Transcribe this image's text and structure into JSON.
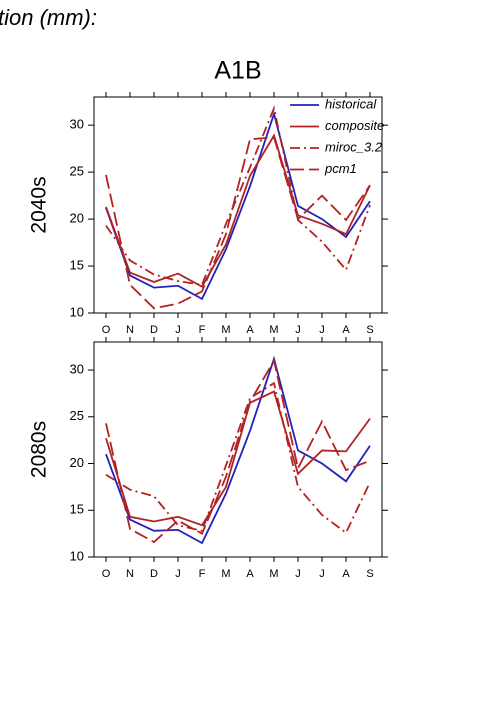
{
  "heading": "tion (mm):",
  "title": "A1B",
  "chart_data": [
    {
      "type": "line",
      "ylabel": "2040s",
      "legend": "upper right",
      "categories": [
        "O",
        "N",
        "D",
        "J",
        "F",
        "M",
        "A",
        "M",
        "J",
        "J",
        "A",
        "S"
      ],
      "ylim": [
        10,
        33
      ],
      "yticks": [
        10,
        15,
        20,
        25,
        30
      ],
      "series": [
        {
          "name": "historical",
          "color": "#2222bb",
          "dash": "solid",
          "values": [
            21.2,
            14.0,
            12.7,
            12.9,
            11.5,
            16.8,
            23.5,
            31.2,
            21.4,
            20.0,
            18.1,
            21.9
          ]
        },
        {
          "name": "composite",
          "color": "#b22222",
          "dash": "solid",
          "values": [
            21.3,
            14.3,
            13.3,
            14.2,
            12.8,
            17.3,
            24.6,
            28.9,
            20.4,
            19.5,
            18.4,
            23.6
          ]
        },
        {
          "name": "miroc_3.2",
          "color": "#b22222",
          "dash": "dashdot",
          "values": [
            19.3,
            15.6,
            14.1,
            13.4,
            13.0,
            19.5,
            25.5,
            31.8,
            19.9,
            17.6,
            14.6,
            21.5
          ]
        },
        {
          "name": "pcm1",
          "color": "#b22222",
          "dash": "dashed",
          "values": [
            24.7,
            13.0,
            10.5,
            11.0,
            12.3,
            18.4,
            28.5,
            28.7,
            20.0,
            22.5,
            19.9,
            23.6
          ]
        }
      ]
    },
    {
      "type": "line",
      "ylabel": "2080s",
      "legend": null,
      "categories": [
        "O",
        "N",
        "D",
        "J",
        "F",
        "M",
        "A",
        "M",
        "J",
        "J",
        "A",
        "S"
      ],
      "ylim": [
        10,
        33
      ],
      "yticks": [
        10,
        15,
        20,
        25,
        30
      ],
      "series": [
        {
          "name": "historical",
          "color": "#2222bb",
          "dash": "solid",
          "values": [
            21.0,
            14.0,
            12.8,
            12.9,
            11.5,
            16.8,
            23.5,
            31.2,
            21.4,
            20.0,
            18.1,
            21.9
          ]
        },
        {
          "name": "composite",
          "color": "#b22222",
          "dash": "solid",
          "values": [
            22.7,
            14.3,
            13.8,
            14.3,
            13.4,
            17.5,
            26.5,
            27.7,
            18.9,
            21.4,
            21.3,
            24.8
          ]
        },
        {
          "name": "miroc_3.2",
          "color": "#b22222",
          "dash": "dashdot",
          "values": [
            18.8,
            17.2,
            16.5,
            13.4,
            12.8,
            19.8,
            27.0,
            28.6,
            17.5,
            14.5,
            12.6,
            18.0
          ]
        },
        {
          "name": "pcm1",
          "color": "#b22222",
          "dash": "dashed",
          "values": [
            24.3,
            13.0,
            11.6,
            13.9,
            12.5,
            18.6,
            26.6,
            31.0,
            19.5,
            24.5,
            19.3,
            20.3
          ]
        }
      ]
    }
  ]
}
